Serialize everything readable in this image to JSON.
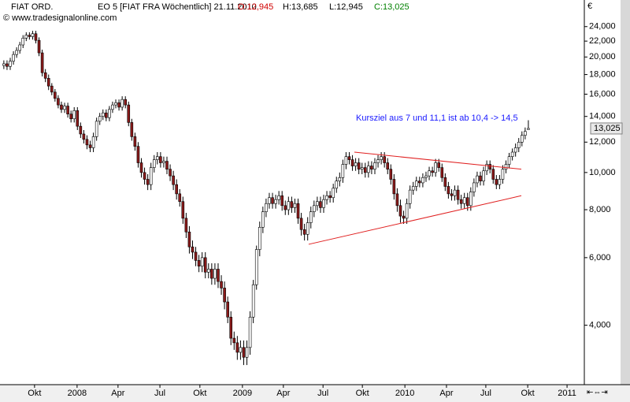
{
  "chart_data": {
    "type": "candlestick",
    "header": {
      "symbol": "FIAT ORD.",
      "info": "EO 5 [FIAT FRA  Wöchentlich] 21.11.2010",
      "open": "O:12,945",
      "high": "H:13,685",
      "low": "L:12,945",
      "close": "C:13,025"
    },
    "copyright": "© www.tradesignalonline.com",
    "annotation": "Kursziel aus 7 und 11,1 ist ab 10,4 -> 14,5",
    "currency": "€",
    "last_price_label": "13,025",
    "log_scale": true,
    "up_color": "#ffffff",
    "down_color": "#8b1a1a",
    "trendline_color": "#e02020",
    "ylim": [
      2800,
      26600
    ],
    "yticks": [
      {
        "value": 4000,
        "label": "4,000"
      },
      {
        "value": 6000,
        "label": "6,000"
      },
      {
        "value": 8000,
        "label": "8,000"
      },
      {
        "value": 10000,
        "label": "10,000"
      },
      {
        "value": 12000,
        "label": "12,000"
      },
      {
        "value": 14000,
        "label": "14,000"
      },
      {
        "value": 16000,
        "label": "16,000"
      },
      {
        "value": 18000,
        "label": "18,000"
      },
      {
        "value": 20000,
        "label": "20,000"
      },
      {
        "value": 22000,
        "label": "22,000"
      },
      {
        "value": 24000,
        "label": "24,000"
      }
    ],
    "xlim": [
      -1.2,
      181.5
    ],
    "xticks": [
      {
        "value": 9.6,
        "label": "Okt"
      },
      {
        "value": 22.9,
        "label": "2008"
      },
      {
        "value": 35.7,
        "label": "Apr"
      },
      {
        "value": 48.8,
        "label": "Jul"
      },
      {
        "value": 61.3,
        "label": "Okt"
      },
      {
        "value": 74.6,
        "label": "2009"
      },
      {
        "value": 87.4,
        "label": "Apr"
      },
      {
        "value": 99.8,
        "label": "Jul"
      },
      {
        "value": 112.1,
        "label": "Okt"
      },
      {
        "value": 125.4,
        "label": "2010"
      },
      {
        "value": 138.4,
        "label": "Apr"
      },
      {
        "value": 150.7,
        "label": "Jul"
      },
      {
        "value": 163.8,
        "label": "Okt"
      },
      {
        "value": 176.1,
        "label": "2011"
      }
    ],
    "trendlines": [
      {
        "x": [
          109.6,
          161.8
        ],
        "y": [
          11300,
          10200
        ]
      },
      {
        "x": [
          95.3,
          161.8
        ],
        "y": [
          6500,
          8700
        ]
      }
    ],
    "open": [
      19000,
      19200,
      18900,
      19500,
      20300,
      20800,
      21500,
      22400,
      22800,
      22600,
      23000,
      22100,
      20500,
      18200,
      17600,
      16800,
      16200,
      15600,
      15000,
      14600,
      14900,
      14200,
      13800,
      14500,
      13200,
      12600,
      12200,
      11800,
      11600,
      12400,
      13600,
      14000,
      14300,
      13900,
      14600,
      15000,
      15200,
      14800,
      15500,
      15000,
      13500,
      12400,
      11700,
      10600,
      10000,
      9600,
      9300,
      10300,
      10800,
      11000,
      10600,
      10700,
      10200,
      9800,
      9300,
      8800,
      8400,
      7600,
      7000,
      6400,
      6200,
      5900,
      5700,
      6000,
      5500,
      5600,
      5300,
      5600,
      5200,
      5000,
      4600,
      4200,
      3700,
      3600,
      3400,
      3500,
      3300,
      3500,
      4200,
      5100,
      6300,
      7200,
      7900,
      8300,
      8600,
      8300,
      8500,
      8700,
      8200,
      8000,
      8400,
      8100,
      8300,
      7600,
      7100,
      6900,
      7400,
      7900,
      8200,
      8400,
      8100,
      8500,
      8700,
      8600,
      9100,
      9500,
      9700,
      10500,
      11000,
      10800,
      10400,
      10600,
      10200,
      10300,
      10000,
      10400,
      10200,
      10600,
      10800,
      11000,
      10600,
      10200,
      9600,
      8800,
      8200,
      7700,
      7600,
      8300,
      9000,
      9200,
      9500,
      9400,
      9700,
      9800,
      10100,
      10000,
      10600,
      10300,
      9700,
      9200,
      8800,
      8700,
      9000,
      8500,
      8300,
      8600,
      8200,
      8900,
      9400,
      9800,
      9500,
      10100,
      10500,
      10200,
      9600,
      9300,
      9600,
      10200,
      10500,
      11000,
      11300,
      11600,
      12000,
      12500,
      12945
    ],
    "high": [
      19600,
      19600,
      19900,
      20700,
      21200,
      21900,
      22800,
      23200,
      23200,
      23400,
      23400,
      22500,
      20900,
      18600,
      18000,
      17100,
      16500,
      15900,
      15300,
      15200,
      15200,
      14500,
      14800,
      14800,
      13500,
      12900,
      12500,
      12100,
      12700,
      13900,
      14300,
      14600,
      14600,
      14900,
      15300,
      15500,
      15500,
      15800,
      15800,
      15300,
      13800,
      12700,
      12000,
      10900,
      10300,
      9900,
      10600,
      11100,
      11300,
      11300,
      11000,
      11000,
      10500,
      10100,
      9600,
      9050,
      8650,
      7850,
      7250,
      6650,
      6400,
      6100,
      6200,
      6200,
      5800,
      5800,
      5800,
      5800,
      5400,
      5200,
      4750,
      4350,
      3850,
      3750,
      3650,
      3650,
      3650,
      4350,
      5250,
      6450,
      7450,
      8150,
      8550,
      8850,
      8850,
      8750,
      8950,
      8950,
      8450,
      8650,
      8650,
      8550,
      8550,
      7850,
      7350,
      7650,
      8150,
      8450,
      8650,
      8650,
      8750,
      8950,
      8950,
      9350,
      9750,
      10000,
      10800,
      11300,
      11300,
      11100,
      10900,
      10900,
      10600,
      10600,
      10700,
      10700,
      10900,
      11100,
      11300,
      11300,
      10900,
      10500,
      9900,
      9100,
      8500,
      7950,
      8550,
      9250,
      9450,
      9750,
      9750,
      9950,
      10050,
      10350,
      10350,
      10850,
      10850,
      10550,
      9950,
      9450,
      9050,
      9250,
      9250,
      8750,
      8850,
      8850,
      9150,
      9650,
      10050,
      10050,
      10350,
      10750,
      10750,
      10450,
      9850,
      9850,
      10450,
      10750,
      11250,
      11550,
      11900,
      12300,
      12800,
      13100,
      13685
    ],
    "low": [
      18600,
      18500,
      18500,
      19100,
      19900,
      20400,
      21100,
      22000,
      22200,
      22200,
      21700,
      20100,
      17800,
      17200,
      16400,
      15900,
      15300,
      14700,
      14300,
      14300,
      13900,
      13500,
      13500,
      12900,
      12300,
      11900,
      11500,
      11300,
      11300,
      12100,
      13300,
      13700,
      13600,
      13600,
      14300,
      14700,
      14500,
      14500,
      14700,
      13200,
      12100,
      11400,
      10300,
      9700,
      9300,
      9000,
      9000,
      10000,
      10500,
      10300,
      10300,
      9900,
      9500,
      9000,
      8500,
      8150,
      7350,
      6750,
      6150,
      5950,
      5700,
      5500,
      5500,
      5300,
      5300,
      5100,
      5100,
      5000,
      4800,
      4400,
      4050,
      3550,
      3450,
      3250,
      3250,
      3150,
      3150,
      3350,
      4050,
      4950,
      6050,
      6950,
      7650,
      8050,
      8050,
      8050,
      8250,
      7950,
      7750,
      7750,
      7850,
      7850,
      7350,
      6850,
      6650,
      6650,
      7150,
      7650,
      7950,
      7850,
      7850,
      8250,
      8350,
      8350,
      8850,
      9200,
      9400,
      10200,
      10500,
      10100,
      10100,
      9900,
      9900,
      9700,
      9700,
      9900,
      9900,
      10300,
      10500,
      10300,
      9900,
      9300,
      8500,
      7900,
      7400,
      7350,
      7350,
      8050,
      8750,
      8950,
      9150,
      9150,
      9450,
      9550,
      9750,
      9750,
      10050,
      9450,
      8950,
      8550,
      8450,
      8450,
      8250,
      8050,
      8050,
      7950,
      7950,
      8650,
      9150,
      9250,
      9250,
      9850,
      9950,
      9350,
      9050,
      9050,
      9350,
      9950,
      10250,
      10750,
      11000,
      11300,
      11700,
      12200,
      12945
    ],
    "close": [
      19200,
      18900,
      19500,
      20300,
      20800,
      21500,
      22400,
      22800,
      22600,
      23000,
      22100,
      20500,
      18200,
      17600,
      16800,
      16200,
      15600,
      15000,
      14600,
      14900,
      14200,
      13800,
      14500,
      13200,
      12600,
      12200,
      11800,
      11600,
      12400,
      13600,
      14000,
      14300,
      13900,
      14600,
      15000,
      15200,
      14800,
      15500,
      15000,
      13500,
      12400,
      11700,
      10600,
      10000,
      9600,
      9300,
      10300,
      10800,
      11000,
      10600,
      10700,
      10200,
      9800,
      9300,
      8800,
      8400,
      7600,
      7000,
      6400,
      6200,
      5900,
      5700,
      6000,
      5500,
      5600,
      5300,
      5600,
      5200,
      5000,
      4600,
      4200,
      3700,
      3600,
      3400,
      3500,
      3300,
      3500,
      4200,
      5100,
      6300,
      7200,
      7900,
      8300,
      8600,
      8300,
      8500,
      8700,
      8200,
      8000,
      8400,
      8100,
      8300,
      7600,
      7100,
      6900,
      7400,
      7900,
      8200,
      8400,
      8100,
      8500,
      8700,
      8600,
      9100,
      9500,
      9700,
      10500,
      11000,
      10800,
      10400,
      10600,
      10200,
      10300,
      10000,
      10400,
      10200,
      10600,
      10800,
      11000,
      10600,
      10200,
      9600,
      8800,
      8200,
      7700,
      7600,
      8300,
      9000,
      9200,
      9500,
      9400,
      9700,
      9800,
      10100,
      10000,
      10600,
      10300,
      9700,
      9200,
      8800,
      8700,
      9000,
      8500,
      8300,
      8600,
      8200,
      8900,
      9400,
      9800,
      9500,
      10100,
      10500,
      10200,
      9600,
      9300,
      9600,
      10200,
      10500,
      11000,
      11300,
      11600,
      12000,
      12500,
      12800,
      13025
    ]
  }
}
